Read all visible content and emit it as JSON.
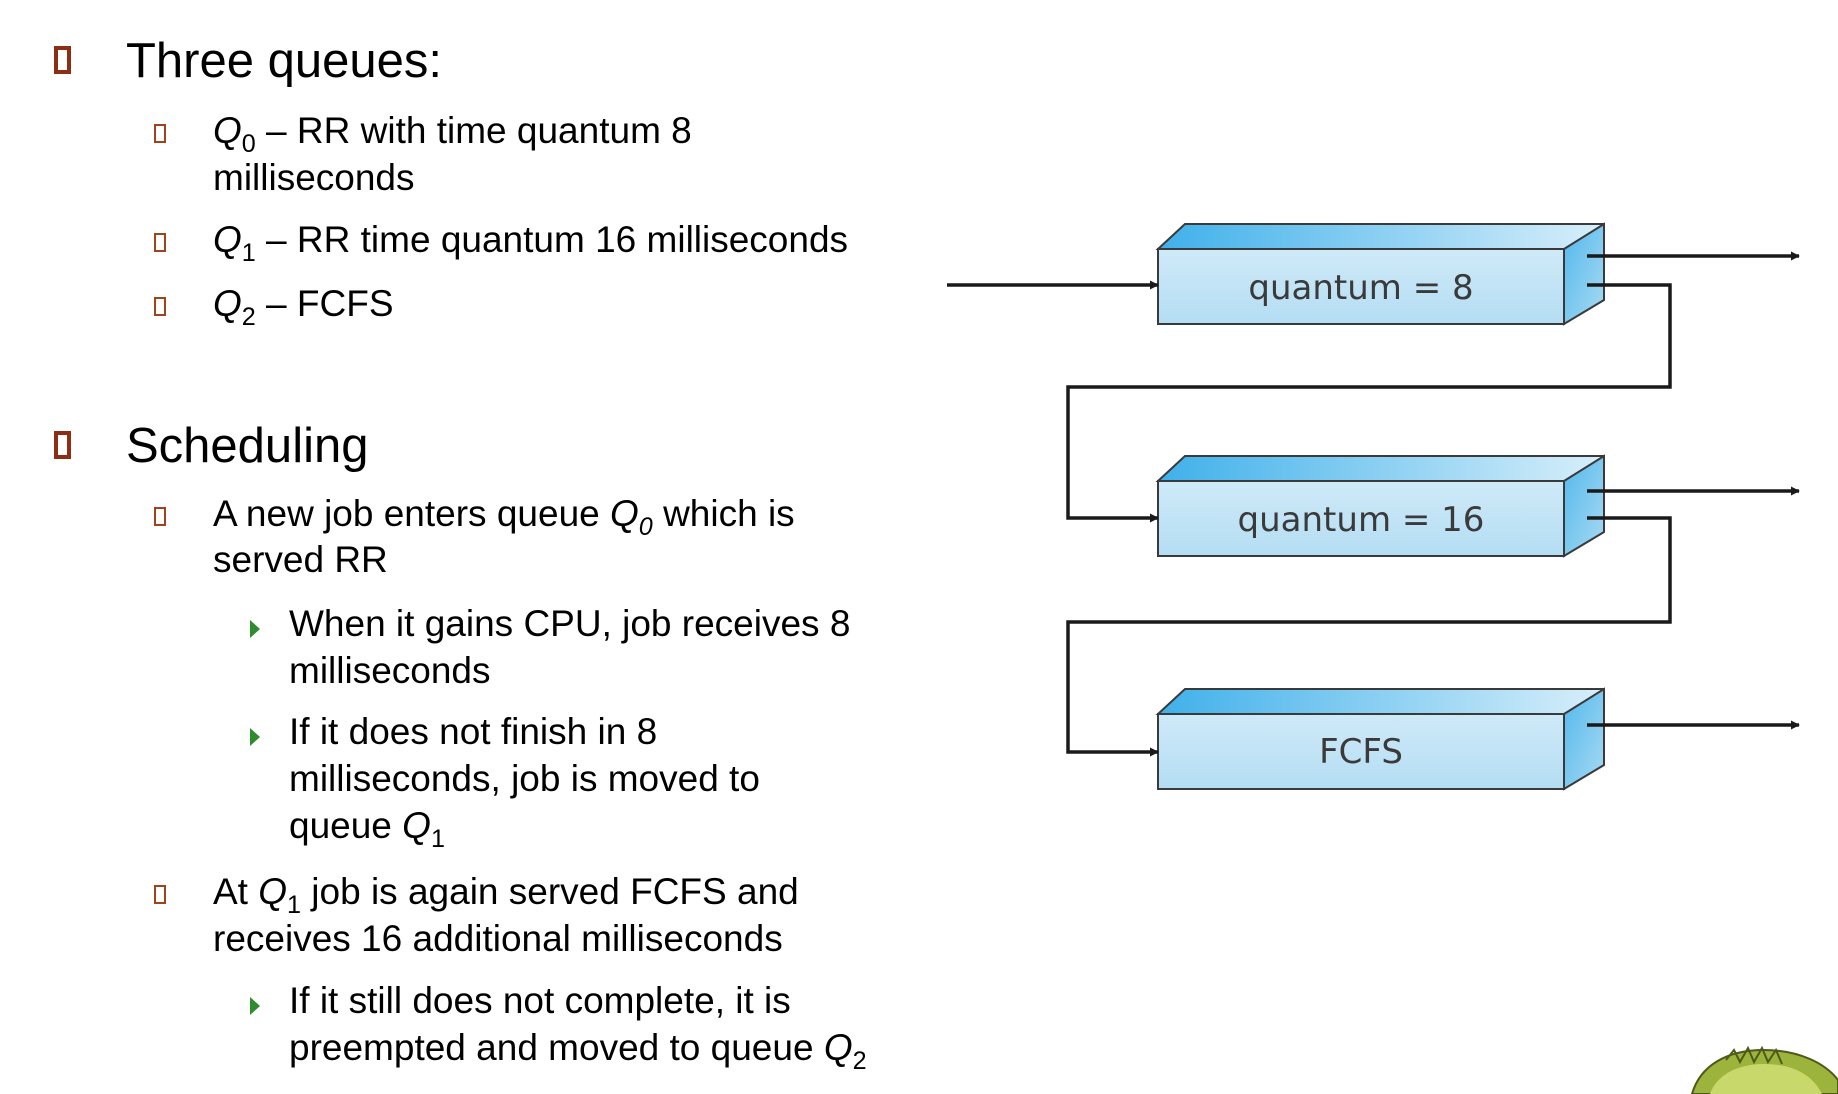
{
  "sections": [
    {
      "heading": "Three queues:",
      "items": [
        {
          "q": "Q",
          "sub": "0",
          "line1": " – RR with time quantum 8",
          "line2": "milliseconds"
        },
        {
          "q": "Q",
          "sub": "1",
          "line1": " – RR time quantum 16 milliseconds"
        },
        {
          "q": "Q",
          "sub": "2",
          "line1": " – FCFS"
        }
      ]
    },
    {
      "heading": "Scheduling",
      "item1": {
        "pre": "A new job enters queue ",
        "q": "Q",
        "sub": "0",
        "post": " which is",
        "line2": "served RR",
        "subitems": [
          {
            "line1": "When it gains CPU, job receives 8",
            "line2": "milliseconds"
          },
          {
            "line1": "If it does not finish in 8",
            "line2": "milliseconds, job is moved to",
            "line3pre": "queue ",
            "q": "Q",
            "sub": "1"
          }
        ]
      },
      "item2": {
        "pre": "At ",
        "q": "Q",
        "sub": "1",
        "post": " job is again served FCFS and",
        "line2": "receives 16 additional milliseconds",
        "subitems": [
          {
            "line1": "If it still does not complete, it is",
            "line2pre": "preempted and moved to queue ",
            "q": "Q",
            "sub": "2"
          }
        ]
      }
    }
  ],
  "diagram": {
    "queues": [
      {
        "label": "quantum = 8"
      },
      {
        "label": "quantum = 16"
      },
      {
        "label": "FCFS"
      }
    ],
    "colors": {
      "box_front": "#bfe3f5",
      "box_top": "#55b9ec",
      "box_side": "#7fcdf0",
      "line": "#1a1a1a",
      "bullet_square": "#8b2e14",
      "bullet_arrow": "#2e8b2e"
    }
  }
}
